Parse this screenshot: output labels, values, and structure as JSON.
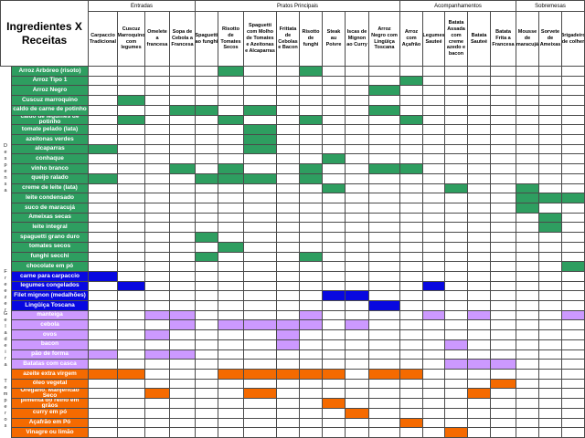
{
  "title": "Ingredientes X Receitas",
  "colors": {
    "green": "#2e9e60",
    "blue": "#0808e0",
    "purple": "#cc99ff",
    "orange": "#f56a00",
    "grid_line": "#4a4a4a"
  },
  "recipe_groups": [
    {
      "label": "Entradas",
      "start": 0,
      "span": 4
    },
    {
      "label": "Pratos Principais",
      "start": 4,
      "span": 8
    },
    {
      "label": "Acompanhamentos",
      "start": 12,
      "span": 5
    },
    {
      "label": "Sobremesas",
      "start": 17,
      "span": 3
    }
  ],
  "recipes": [
    "Carpaccio Tradicional",
    "Cuscuz Marroquino com legumes",
    "Omelete a francesa",
    "Sopa de Cebola a Francesa",
    "Spaguetti ao funghi",
    "Risotto de Tomates Secos",
    "Spaguetti com Molho de Tomates e Azeitonas e Alcaparras",
    "Frittata de Cebolas e Bacon",
    "Risotto de funghi",
    "Steak au Poivre",
    "Iscas de Mignon ao Curry",
    "Arroz Negro com Lingüiça Toscana",
    "Arroz com Açafrão",
    "Legumes Sauteé",
    "Batata Assada com creme azedo e bacon",
    "Batata Sauteé",
    "Batata Frita a Francesa",
    "Mousse de maracujá",
    "Sorvete de Ameixas",
    "Brigadeiro de colher"
  ],
  "ingredient_sections": [
    {
      "name": "Despensa",
      "color": "green",
      "start": 0,
      "count": 21
    },
    {
      "name": "Freezer",
      "color": "blue",
      "start": 21,
      "count": 4
    },
    {
      "name": "Geladeira",
      "color": "purple",
      "start": 25,
      "count": 6
    },
    {
      "name": "Temperos",
      "color": "orange",
      "start": 31,
      "count": 7
    }
  ],
  "ingredients": [
    {
      "name": "Arroz Arbóreo (risoto)",
      "group": "green",
      "marks": [
        5,
        8
      ]
    },
    {
      "name": "Arroz Tipo 1",
      "group": "green",
      "marks": [
        12
      ]
    },
    {
      "name": "Arroz Negro",
      "group": "green",
      "marks": [
        11
      ]
    },
    {
      "name": "Cuscuz marroquino",
      "group": "green",
      "marks": [
        1
      ]
    },
    {
      "name": "caldo de carne de potinho",
      "group": "green",
      "marks": [
        3,
        4,
        6,
        11
      ]
    },
    {
      "name": "caldo de legumes de potinho",
      "group": "green",
      "marks": [
        1,
        5,
        8,
        12
      ]
    },
    {
      "name": "tomate pelado (lata)",
      "group": "green",
      "marks": [
        6
      ]
    },
    {
      "name": "azeitonas verdes",
      "group": "green",
      "marks": [
        6
      ]
    },
    {
      "name": "alcaparras",
      "group": "green",
      "marks": [
        0,
        6
      ]
    },
    {
      "name": "conhaque",
      "group": "green",
      "marks": [
        9
      ]
    },
    {
      "name": "vinho branco",
      "group": "green",
      "marks": [
        3,
        5,
        8,
        11,
        12
      ]
    },
    {
      "name": "queijo ralado",
      "group": "green",
      "marks": [
        0,
        4,
        5,
        6,
        8
      ]
    },
    {
      "name": "creme de leite (lata)",
      "group": "green",
      "marks": [
        9,
        14,
        17
      ]
    },
    {
      "name": "leite condensado",
      "group": "green",
      "marks": [
        17,
        18,
        19
      ]
    },
    {
      "name": "suco de maracujá",
      "group": "green",
      "marks": [
        17
      ]
    },
    {
      "name": "Ameixas secas",
      "group": "green",
      "marks": [
        18
      ]
    },
    {
      "name": "leite integral",
      "group": "green",
      "marks": [
        18
      ]
    },
    {
      "name": "spaguetti grano duro",
      "group": "green",
      "marks": [
        4
      ]
    },
    {
      "name": "tomates secos",
      "group": "green",
      "marks": [
        5
      ]
    },
    {
      "name": "funghi secchi",
      "group": "green",
      "marks": [
        4,
        8
      ]
    },
    {
      "name": "chocolate em pó",
      "group": "green",
      "marks": [
        19
      ]
    },
    {
      "name": "carne para carpaccio",
      "group": "blue",
      "marks": [
        0
      ]
    },
    {
      "name": "legumes congelados",
      "group": "blue",
      "marks": [
        1,
        13
      ]
    },
    {
      "name": "Filet mignon (medalhões)",
      "group": "blue",
      "marks": [
        9,
        10
      ]
    },
    {
      "name": "Lingüiça Toscana",
      "group": "blue",
      "marks": [
        11
      ]
    },
    {
      "name": "manteiga",
      "group": "purple",
      "marks": [
        2,
        3,
        8,
        13,
        15,
        19
      ]
    },
    {
      "name": "cebola",
      "group": "purple",
      "marks": [
        3,
        5,
        6,
        7,
        8,
        10
      ]
    },
    {
      "name": "ovos",
      "group": "purple",
      "marks": [
        2,
        7
      ]
    },
    {
      "name": "bacon",
      "group": "purple",
      "marks": [
        7,
        14
      ]
    },
    {
      "name": "pão de forma",
      "group": "purple",
      "marks": [
        0,
        2,
        3
      ]
    },
    {
      "name": "Batatas com casca",
      "group": "purple",
      "marks": [
        14,
        15,
        16
      ]
    },
    {
      "name": "azeite extra virgem",
      "group": "orange",
      "marks": [
        0,
        1,
        5,
        6,
        7,
        8,
        9,
        11,
        12
      ]
    },
    {
      "name": "óleo vegetal",
      "group": "orange",
      "marks": [
        16
      ]
    },
    {
      "name": "Orégano. Manjericão Seco",
      "group": "orange",
      "marks": [
        2,
        6,
        15
      ]
    },
    {
      "name": "pimenta do reino em grãos",
      "group": "orange",
      "marks": [
        9
      ]
    },
    {
      "name": "curry em pó",
      "group": "orange",
      "marks": [
        10
      ]
    },
    {
      "name": "Açafrão em Pó",
      "group": "orange",
      "marks": [
        12
      ]
    },
    {
      "name": "Vinagre ou limão",
      "group": "orange",
      "marks": [
        14
      ]
    }
  ]
}
